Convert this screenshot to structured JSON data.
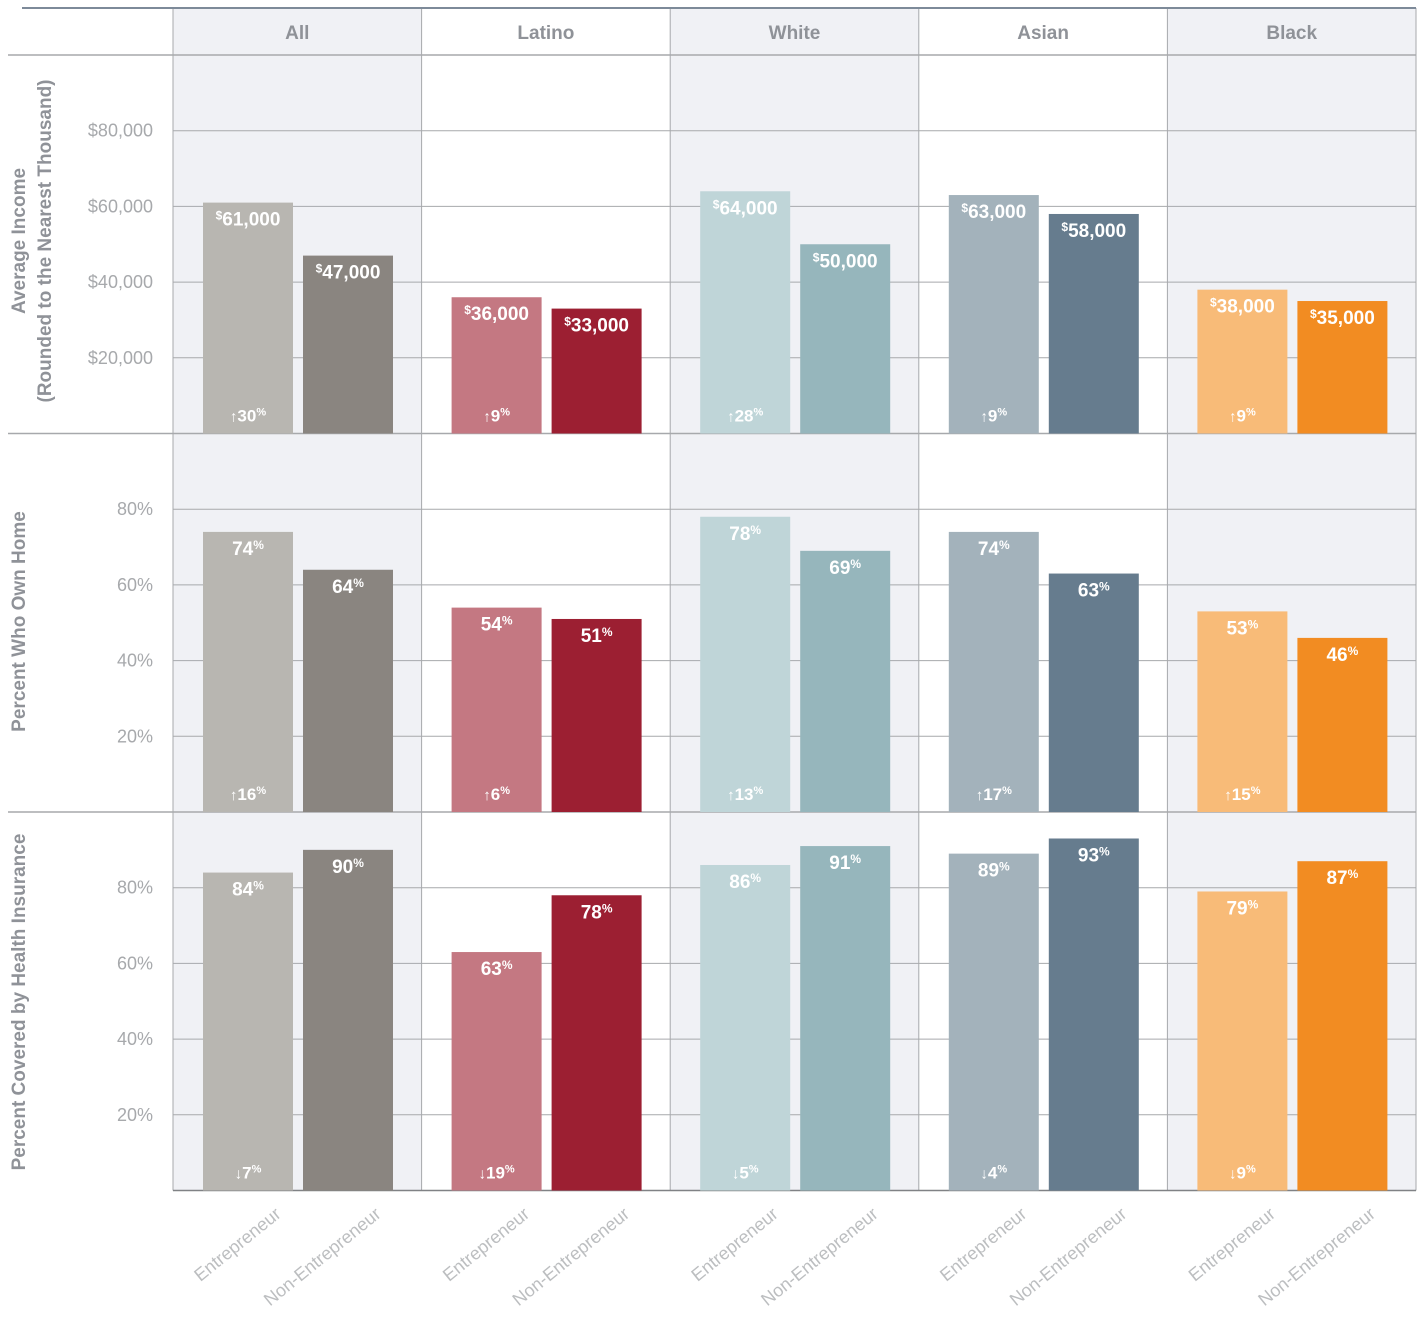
{
  "chart_data": {
    "type": "bar",
    "layout": "small-multiples",
    "columns": [
      "All",
      "Latino",
      "White",
      "Asian",
      "Black"
    ],
    "categories": [
      "Entrepreneur",
      "Non-Entrepreneur"
    ],
    "colors": {
      "All": [
        "#b8b6b1",
        "#8a8580"
      ],
      "Latino": [
        "#c47882",
        "#9c1f32"
      ],
      "White": [
        "#bfd5d8",
        "#96b6bc"
      ],
      "Asian": [
        "#a3b2bb",
        "#667c8e"
      ],
      "Black": [
        "#f8bb78",
        "#f28c22"
      ]
    },
    "panels": [
      {
        "ylabel": "Average Income",
        "ylabel2": "(Rounded to the Nearest Thousand)",
        "ylim": [
          0,
          100000
        ],
        "yticks": [
          20000,
          40000,
          60000,
          80000
        ],
        "ytick_labels": [
          "$20,000",
          "$40,000",
          "$60,000",
          "$80,000"
        ],
        "value_format": "currency",
        "series": [
          {
            "column": "All",
            "values": [
              61000,
              47000
            ],
            "labels": [
              "61,000",
              "47,000"
            ],
            "diff": "30%",
            "direction": "up"
          },
          {
            "column": "Latino",
            "values": [
              36000,
              33000
            ],
            "labels": [
              "36,000",
              "33,000"
            ],
            "diff": "9%",
            "direction": "up"
          },
          {
            "column": "White",
            "values": [
              64000,
              50000
            ],
            "labels": [
              "64,000",
              "50,000"
            ],
            "diff": "28%",
            "direction": "up"
          },
          {
            "column": "Asian",
            "values": [
              63000,
              58000
            ],
            "labels": [
              "63,000",
              "58,000"
            ],
            "diff": "9%",
            "direction": "up"
          },
          {
            "column": "Black",
            "values": [
              38000,
              35000
            ],
            "labels": [
              "38,000",
              "35,000"
            ],
            "diff": "9%",
            "direction": "up"
          }
        ]
      },
      {
        "ylabel": "Percent Who Own Home",
        "ylim": [
          0,
          100
        ],
        "yticks": [
          20,
          40,
          60,
          80
        ],
        "ytick_labels": [
          "20%",
          "40%",
          "60%",
          "80%"
        ],
        "value_format": "percent",
        "series": [
          {
            "column": "All",
            "values": [
              74,
              64
            ],
            "labels": [
              "74",
              "64"
            ],
            "diff": "16%",
            "direction": "up"
          },
          {
            "column": "Latino",
            "values": [
              54,
              51
            ],
            "labels": [
              "54",
              "51"
            ],
            "diff": "6%",
            "direction": "up"
          },
          {
            "column": "White",
            "values": [
              78,
              69
            ],
            "labels": [
              "78",
              "69"
            ],
            "diff": "13%",
            "direction": "up"
          },
          {
            "column": "Asian",
            "values": [
              74,
              63
            ],
            "labels": [
              "74",
              "63"
            ],
            "diff": "17%",
            "direction": "up"
          },
          {
            "column": "Black",
            "values": [
              53,
              46
            ],
            "labels": [
              "53",
              "46"
            ],
            "diff": "15%",
            "direction": "up"
          }
        ]
      },
      {
        "ylabel": "Percent Covered by Health Insurance",
        "ylim": [
          0,
          100
        ],
        "yticks": [
          20,
          40,
          60,
          80
        ],
        "ytick_labels": [
          "20%",
          "40%",
          "60%",
          "80%"
        ],
        "value_format": "percent",
        "series": [
          {
            "column": "All",
            "values": [
              84,
              90
            ],
            "labels": [
              "84",
              "90"
            ],
            "diff": "7%",
            "direction": "down"
          },
          {
            "column": "Latino",
            "values": [
              63,
              78
            ],
            "labels": [
              "63",
              "78"
            ],
            "diff": "19%",
            "direction": "down"
          },
          {
            "column": "White",
            "values": [
              86,
              91
            ],
            "labels": [
              "86",
              "91"
            ],
            "diff": "5%",
            "direction": "down"
          },
          {
            "column": "Asian",
            "values": [
              89,
              93
            ],
            "labels": [
              "89",
              "93"
            ],
            "diff": "4%",
            "direction": "down"
          },
          {
            "column": "Black",
            "values": [
              79,
              87
            ],
            "labels": [
              "79",
              "87"
            ],
            "diff": "9%",
            "direction": "down"
          }
        ]
      }
    ],
    "grid": true
  }
}
